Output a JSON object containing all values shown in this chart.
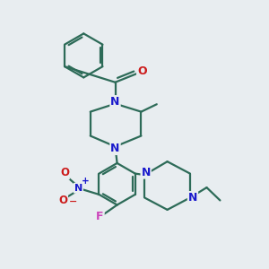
{
  "bg_color": "#e8edf0",
  "bond_color": "#2d6b58",
  "N_color": "#1a1acc",
  "O_color": "#cc1a1a",
  "F_color": "#cc44bb",
  "lw": 1.6,
  "figsize": [
    3.0,
    3.0
  ],
  "dpi": 100,
  "xlim": [
    0,
    10
  ],
  "ylim": [
    0,
    10
  ]
}
